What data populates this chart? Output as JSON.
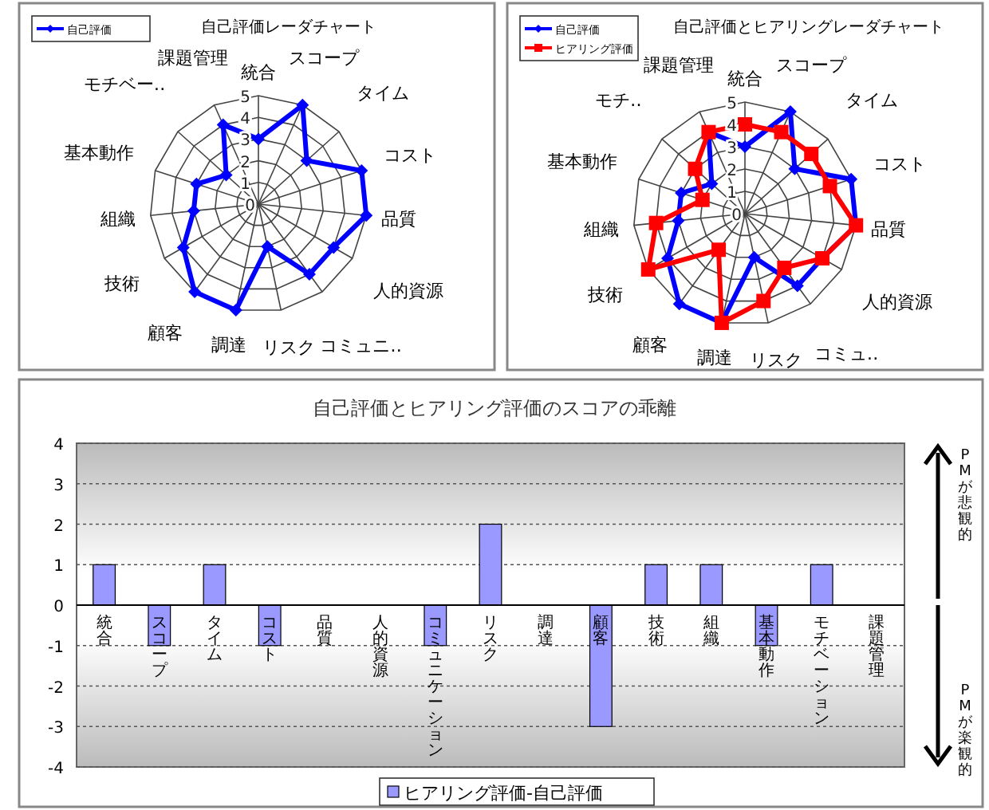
{
  "chart_data": [
    {
      "type": "radar",
      "title": "自己評価レーダチャート",
      "categories": [
        "統合",
        "スコープ",
        "タイム",
        "コスト",
        "品質",
        "人的資源",
        "コミュニ‥",
        "リスク",
        "調達",
        "顧客",
        "技術",
        "組織",
        "基本動作",
        "モチベー‥",
        "課題管理"
      ],
      "ylim": [
        0,
        5
      ],
      "yticks": [
        0,
        1,
        2,
        3,
        4,
        5
      ],
      "legend": "top left",
      "series": [
        {
          "name": "自己評価",
          "color": "#0000ff",
          "marker": "diamond",
          "values": [
            3,
            5,
            3,
            5,
            5,
            4,
            4,
            2,
            5,
            5,
            4,
            3,
            3,
            2,
            4
          ]
        }
      ]
    },
    {
      "type": "radar",
      "title": "自己評価とヒアリングレーダチャート",
      "categories": [
        "統合",
        "スコープ",
        "タイム",
        "コスト",
        "品質",
        "人的資源",
        "コミュ‥",
        "リスク",
        "調達",
        "顧客",
        "技術",
        "組織",
        "基本動作",
        "モチ‥",
        "課題管理"
      ],
      "ylim": [
        0,
        5
      ],
      "yticks": [
        0,
        1,
        2,
        3,
        4,
        5
      ],
      "legend": "top left",
      "series": [
        {
          "name": "自己評価",
          "color": "#0000ff",
          "marker": "diamond",
          "values": [
            3,
            5,
            3,
            5,
            5,
            4,
            4,
            2,
            5,
            5,
            4,
            3,
            3,
            2,
            4
          ]
        },
        {
          "name": "ヒアリング評価",
          "color": "#ff0000",
          "marker": "square",
          "values": [
            4,
            4,
            4,
            4,
            5,
            4,
            3,
            4,
            5,
            2,
            5,
            4,
            2,
            3,
            4
          ]
        }
      ]
    },
    {
      "type": "bar",
      "title": "自己評価とヒアリング評価のスコアの乖離",
      "categories": [
        "統合",
        "スコープ",
        "タイム",
        "コスト",
        "品質",
        "人的資源",
        "コミュニケーション",
        "リスク",
        "調達",
        "顧客",
        "技術",
        "組織",
        "基本動作",
        "モチベーション",
        "課題管理"
      ],
      "ylim": [
        -4,
        4
      ],
      "yticks": [
        -4,
        -3,
        -2,
        -1,
        0,
        1,
        2,
        3,
        4
      ],
      "grid": "y",
      "legend": "bottom",
      "series": [
        {
          "name": "ヒアリング評価-自己評価",
          "color": "#9999ff",
          "values": [
            1,
            -1,
            1,
            -1,
            0,
            0,
            -1,
            2,
            0,
            -3,
            1,
            1,
            -1,
            1,
            0
          ]
        }
      ],
      "annotations": [
        "PMが悲観的",
        "PMが楽観的"
      ]
    }
  ]
}
